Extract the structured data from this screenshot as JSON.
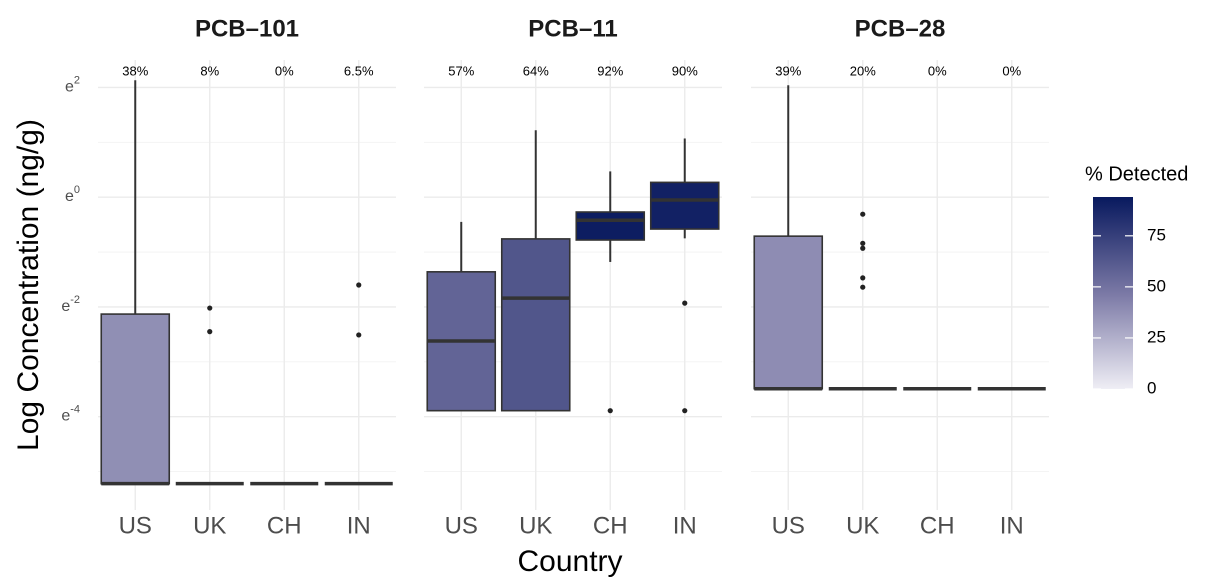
{
  "chart_data": {
    "type": "box",
    "x_label": "Country",
    "y_label": "Log Concentration (ng/g)",
    "categories": [
      "US",
      "UK",
      "CH",
      "IN"
    ],
    "ylim": [
      -5.7,
      2.5
    ],
    "yticks": [
      {
        "value": -4,
        "label": "e-4"
      },
      {
        "value": -2,
        "label": "e-2"
      },
      {
        "value": 0,
        "label": "e0"
      },
      {
        "value": 2,
        "label": "e2"
      }
    ],
    "yminor": [
      -5,
      -3,
      -1,
      1
    ],
    "grid": true,
    "colorbar": {
      "title": "% Detected",
      "lim": [
        0,
        94
      ],
      "ticks": [
        0,
        25,
        50,
        75
      ],
      "colors": [
        "#efeef5",
        "#7a78a5",
        "#08195e"
      ]
    },
    "facets": [
      {
        "title": "PCB–101",
        "detected": [
          38,
          8,
          0,
          6.5
        ],
        "detected_labels": [
          "38%",
          "8%",
          "0%",
          "6.5%"
        ],
        "boxes": [
          {
            "min": -5.22,
            "q1": -5.22,
            "median": -5.22,
            "q3": -2.13,
            "max": 2.13,
            "outliers": []
          },
          {
            "min": -5.22,
            "q1": -5.22,
            "median": -5.22,
            "q3": -5.22,
            "max": -5.22,
            "outliers": [
              -2.02,
              -2.45
            ]
          },
          {
            "min": -5.22,
            "q1": -5.22,
            "median": -5.22,
            "q3": -5.22,
            "max": -5.22,
            "outliers": []
          },
          {
            "min": -5.22,
            "q1": -5.22,
            "median": -5.22,
            "q3": -5.22,
            "max": -5.22,
            "outliers": [
              -1.6,
              -2.51
            ]
          }
        ]
      },
      {
        "title": "PCB–11",
        "detected": [
          57,
          64,
          92,
          90
        ],
        "detected_labels": [
          "57%",
          "64%",
          "92%",
          "90%"
        ],
        "boxes": [
          {
            "min": -3.89,
            "q1": -3.89,
            "median": -2.62,
            "q3": -1.36,
            "max": -0.45,
            "outliers": []
          },
          {
            "min": -3.89,
            "q1": -3.89,
            "median": -1.84,
            "q3": -0.76,
            "max": 1.22,
            "outliers": []
          },
          {
            "min": -1.18,
            "q1": -0.78,
            "median": -0.42,
            "q3": -0.27,
            "max": 0.47,
            "outliers": [
              -3.89
            ]
          },
          {
            "min": -0.75,
            "q1": -0.58,
            "median": -0.05,
            "q3": 0.27,
            "max": 1.07,
            "outliers": [
              -1.93,
              -3.89
            ]
          }
        ]
      },
      {
        "title": "PCB–28",
        "detected": [
          39,
          20,
          0,
          0
        ],
        "detected_labels": [
          "39%",
          "20%",
          "0%",
          "0%"
        ],
        "boxes": [
          {
            "min": -3.49,
            "q1": -3.49,
            "median": -3.49,
            "q3": -0.71,
            "max": 2.04,
            "outliers": []
          },
          {
            "min": -3.49,
            "q1": -3.49,
            "median": -3.49,
            "q3": -3.49,
            "max": -3.49,
            "outliers": [
              -0.31,
              -0.84,
              -0.93,
              -1.47,
              -1.64
            ]
          },
          {
            "min": -3.49,
            "q1": -3.49,
            "median": -3.49,
            "q3": -3.49,
            "max": -3.49,
            "outliers": []
          },
          {
            "min": -3.49,
            "q1": -3.49,
            "median": -3.49,
            "q3": -3.49,
            "max": -3.49,
            "outliers": []
          }
        ]
      }
    ]
  }
}
